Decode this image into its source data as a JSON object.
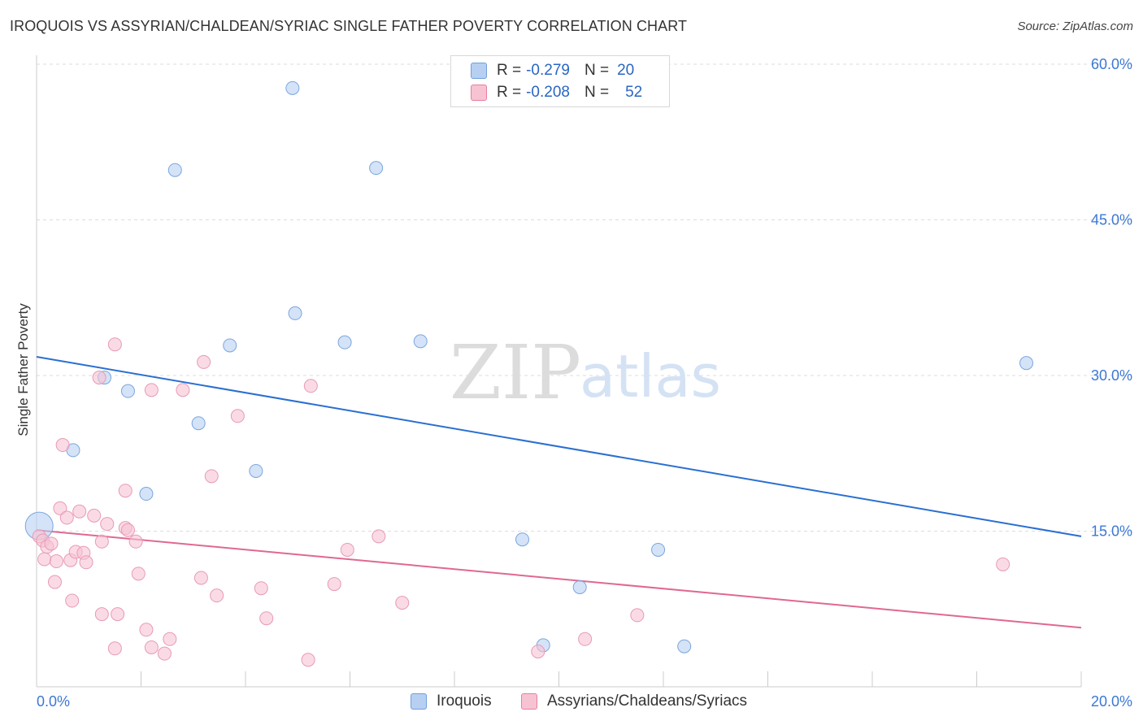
{
  "header": {
    "title": "IROQUOIS VS ASSYRIAN/CHALDEAN/SYRIAC SINGLE FATHER POVERTY CORRELATION CHART",
    "source": "Source: ZipAtlas.com"
  },
  "watermark": {
    "zip": "ZIP",
    "atlas": "atlas"
  },
  "legend": {
    "rows": [
      {
        "r_label": "R =",
        "r_value": "-0.279",
        "n_label": "N =",
        "n_value": "20",
        "color": "#6f9fdc",
        "fill": "#b7d0f2"
      },
      {
        "r_label": "R =",
        "r_value": "-0.208",
        "n_label": "N =",
        "n_value": "52",
        "color": "#e87ea0",
        "fill": "#f7c3d3"
      }
    ]
  },
  "bottom_legend": {
    "items": [
      {
        "label": "Iroquois",
        "color": "#6f9fdc",
        "fill": "#b7d0f2"
      },
      {
        "label": "Assyrians/Chaldeans/Syriacs",
        "color": "#e87ea0",
        "fill": "#f7c3d3"
      }
    ]
  },
  "chart_data": {
    "type": "scatter",
    "title": "IROQUOIS VS ASSYRIAN/CHALDEAN/SYRIAC SINGLE FATHER POVERTY CORRELATION CHART",
    "xlabel": "",
    "ylabel": "Single Father Poverty",
    "xlim": [
      0,
      20
    ],
    "ylim": [
      0,
      60
    ],
    "x_tick_labels": [
      "0.0%",
      "20.0%"
    ],
    "y_ticks": [
      15,
      30,
      45,
      60
    ],
    "y_tick_labels": [
      "15.0%",
      "30.0%",
      "45.0%",
      "60.0%"
    ],
    "grid": true,
    "series": [
      {
        "name": "Iroquois",
        "color": "#2a6fd1",
        "marker_fill": "#b7d0f2",
        "marker_stroke": "#7aa6de",
        "trend": {
          "x0": 0,
          "y0": 31.8,
          "x1": 20,
          "y1": 14.5
        },
        "points": [
          [
            0.05,
            15.5,
            "big"
          ],
          [
            1.3,
            29.8
          ],
          [
            1.75,
            28.5
          ],
          [
            0.7,
            22.8
          ],
          [
            2.65,
            49.8
          ],
          [
            4.9,
            57.7
          ],
          [
            6.5,
            50.0
          ],
          [
            3.1,
            25.4
          ],
          [
            3.7,
            32.9
          ],
          [
            4.95,
            36.0
          ],
          [
            5.9,
            33.2
          ],
          [
            7.35,
            33.3
          ],
          [
            4.2,
            20.8
          ],
          [
            2.1,
            18.6
          ],
          [
            9.3,
            14.2
          ],
          [
            11.9,
            13.2
          ],
          [
            10.4,
            9.6
          ],
          [
            9.7,
            4.0
          ],
          [
            12.4,
            3.9
          ],
          [
            18.95,
            31.2
          ]
        ]
      },
      {
        "name": "Assyrians/Chaldeans/Syriacs",
        "color": "#e06892",
        "marker_fill": "#f7c3d3",
        "marker_stroke": "#e89ab4",
        "trend": {
          "x0": 0,
          "y0": 15.1,
          "x1": 20,
          "y1": 5.7
        },
        "points": [
          [
            0.05,
            14.5
          ],
          [
            0.12,
            14.1
          ],
          [
            0.15,
            12.3
          ],
          [
            0.2,
            13.5
          ],
          [
            0.28,
            13.8
          ],
          [
            0.35,
            10.1
          ],
          [
            0.38,
            12.1
          ],
          [
            0.45,
            17.2
          ],
          [
            0.5,
            23.3
          ],
          [
            0.58,
            16.3
          ],
          [
            0.65,
            12.2
          ],
          [
            0.68,
            8.3
          ],
          [
            0.75,
            13.0
          ],
          [
            0.82,
            16.9
          ],
          [
            0.9,
            12.9
          ],
          [
            0.95,
            12.0
          ],
          [
            1.1,
            16.5
          ],
          [
            1.2,
            29.8
          ],
          [
            1.25,
            14.0
          ],
          [
            1.25,
            7.0
          ],
          [
            1.35,
            15.7
          ],
          [
            1.5,
            33.0
          ],
          [
            1.5,
            3.7
          ],
          [
            1.55,
            7.0
          ],
          [
            1.7,
            18.9
          ],
          [
            1.7,
            15.3
          ],
          [
            1.75,
            15.1
          ],
          [
            1.9,
            14.0
          ],
          [
            1.95,
            10.9
          ],
          [
            2.1,
            5.5
          ],
          [
            2.2,
            3.8
          ],
          [
            2.2,
            28.6
          ],
          [
            2.45,
            3.2
          ],
          [
            2.55,
            4.6
          ],
          [
            2.8,
            28.6
          ],
          [
            3.15,
            10.5
          ],
          [
            3.2,
            31.3
          ],
          [
            3.35,
            20.3
          ],
          [
            3.45,
            8.8
          ],
          [
            3.85,
            26.1
          ],
          [
            4.3,
            9.5
          ],
          [
            4.4,
            6.6
          ],
          [
            5.2,
            2.6
          ],
          [
            5.25,
            29.0
          ],
          [
            5.7,
            9.9
          ],
          [
            5.95,
            13.2
          ],
          [
            6.55,
            14.5
          ],
          [
            7.0,
            8.1
          ],
          [
            9.6,
            3.4
          ],
          [
            10.5,
            4.6
          ],
          [
            11.5,
            6.9
          ],
          [
            18.5,
            11.8
          ]
        ]
      }
    ]
  }
}
